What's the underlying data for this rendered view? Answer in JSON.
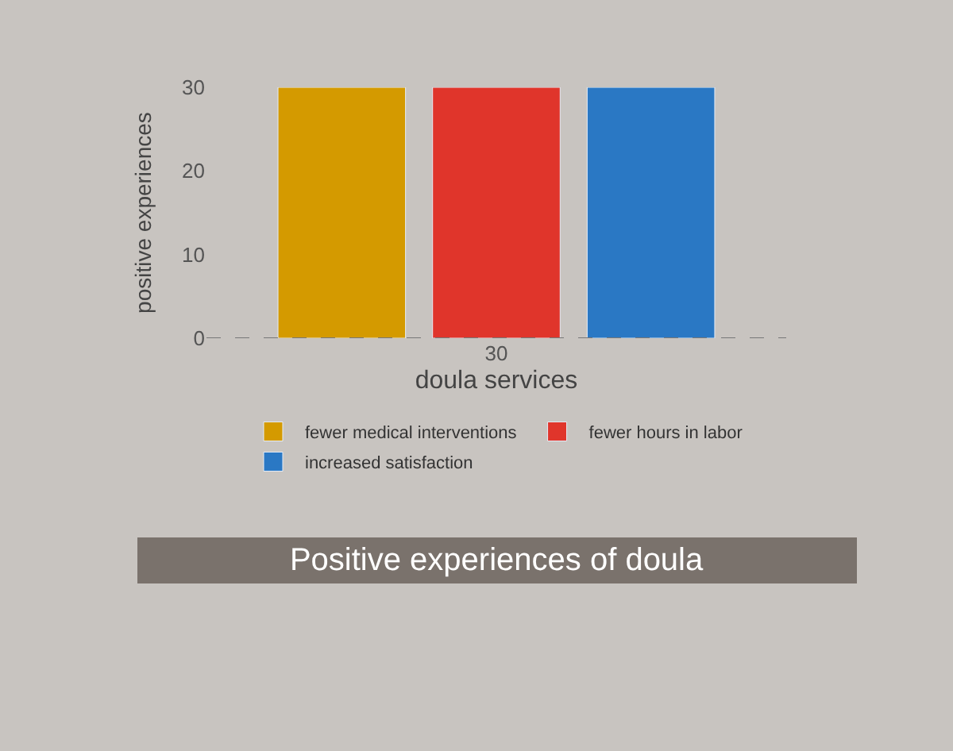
{
  "chart_data": {
    "type": "bar",
    "title": "Positive experiences of doula",
    "xlabel": "doula services",
    "ylabel": "positive experiences",
    "categories": [
      "30"
    ],
    "series": [
      {
        "name": "fewer medical interventions",
        "color": "#d49a00",
        "values": [
          30
        ]
      },
      {
        "name": "fewer hours in labor",
        "color": "#e0352b",
        "values": [
          30
        ]
      },
      {
        "name": "increased satisfaction",
        "color": "#2a78c4",
        "values": [
          30
        ]
      }
    ],
    "ylim": [
      0,
      30
    ],
    "yticks": [
      0,
      10,
      20,
      30
    ],
    "grid": false,
    "legend": "bottom",
    "ref_lines": [
      {
        "axis": "y",
        "value": 0,
        "line_style": "dashed",
        "color": "#777777"
      }
    ]
  }
}
